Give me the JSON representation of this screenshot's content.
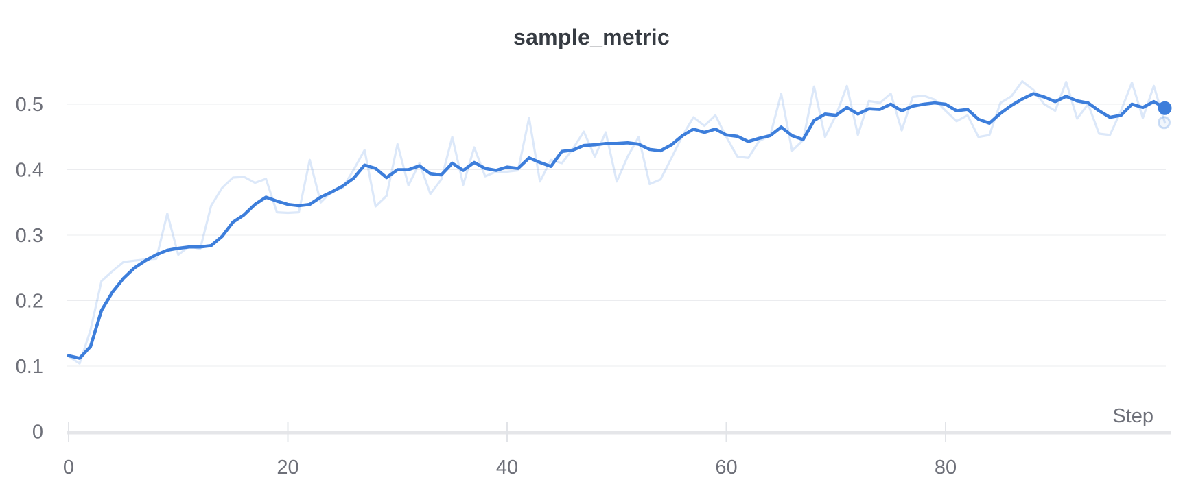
{
  "title": "sample_metric",
  "colors": {
    "accent_blue": "#3d7edb",
    "raw_line_opacity": 0.18,
    "grid_line": "#ebecef",
    "axis_bar": "#e5e6e9",
    "tick_mark": "#e2e4e8",
    "label_gray": "#6e7079",
    "title_dark": "#363b42"
  },
  "x_axis": {
    "label": "Step",
    "tick_labels": [
      "0",
      "20",
      "40",
      "60",
      "80"
    ],
    "tick_values": [
      0,
      20,
      40,
      60,
      80
    ],
    "min": 0,
    "max": 100
  },
  "y_axis": {
    "tick_labels": [
      "0",
      "0.1",
      "0.2",
      "0.3",
      "0.4",
      "0.5"
    ],
    "tick_values": [
      0,
      0.1,
      0.2,
      0.3,
      0.4,
      0.5
    ],
    "min": 0,
    "max": 0.55
  },
  "chart_data": {
    "type": "line",
    "title": "sample_metric",
    "xlabel": "Step",
    "ylabel": "",
    "x_start": 0,
    "x_step": 1,
    "x_range": [
      0,
      100
    ],
    "ylim": [
      0,
      0.55
    ],
    "grid": "horizontal-only",
    "legend": "none",
    "series": [
      {
        "name": "sample_metric (raw)",
        "role": "raw",
        "style": "faded",
        "endpoint_marker": "ring",
        "values": [
          0.115,
          0.104,
          0.155,
          0.23,
          0.245,
          0.259,
          0.261,
          0.263,
          0.264,
          0.333,
          0.27,
          0.283,
          0.279,
          0.345,
          0.372,
          0.388,
          0.389,
          0.38,
          0.386,
          0.335,
          0.334,
          0.335,
          0.415,
          0.35,
          0.367,
          0.372,
          0.4,
          0.43,
          0.344,
          0.36,
          0.439,
          0.376,
          0.41,
          0.363,
          0.385,
          0.45,
          0.377,
          0.434,
          0.39,
          0.397,
          0.397,
          0.399,
          0.479,
          0.382,
          0.415,
          0.41,
          0.432,
          0.458,
          0.42,
          0.457,
          0.382,
          0.42,
          0.45,
          0.378,
          0.385,
          0.418,
          0.452,
          0.48,
          0.467,
          0.483,
          0.45,
          0.42,
          0.418,
          0.444,
          0.452,
          0.516,
          0.429,
          0.445,
          0.527,
          0.45,
          0.483,
          0.528,
          0.453,
          0.505,
          0.502,
          0.516,
          0.46,
          0.511,
          0.513,
          0.507,
          0.49,
          0.474,
          0.483,
          0.45,
          0.453,
          0.502,
          0.512,
          0.535,
          0.522,
          0.5,
          0.49,
          0.534,
          0.478,
          0.5,
          0.455,
          0.453,
          0.49,
          0.533,
          0.479,
          0.528,
          0.472
        ]
      },
      {
        "name": "sample_metric (smoothed)",
        "role": "smoothed",
        "style": "solid",
        "endpoint_marker": "dot",
        "values": [
          0.116,
          0.112,
          0.13,
          0.185,
          0.213,
          0.234,
          0.25,
          0.261,
          0.27,
          0.277,
          0.28,
          0.282,
          0.282,
          0.284,
          0.298,
          0.32,
          0.331,
          0.347,
          0.358,
          0.352,
          0.347,
          0.345,
          0.347,
          0.358,
          0.366,
          0.375,
          0.387,
          0.407,
          0.402,
          0.388,
          0.4,
          0.4,
          0.406,
          0.394,
          0.392,
          0.41,
          0.399,
          0.411,
          0.402,
          0.399,
          0.404,
          0.402,
          0.418,
          0.411,
          0.405,
          0.428,
          0.43,
          0.437,
          0.438,
          0.44,
          0.44,
          0.441,
          0.439,
          0.431,
          0.429,
          0.438,
          0.452,
          0.462,
          0.457,
          0.462,
          0.453,
          0.451,
          0.443,
          0.448,
          0.452,
          0.465,
          0.452,
          0.446,
          0.475,
          0.485,
          0.483,
          0.495,
          0.485,
          0.493,
          0.492,
          0.5,
          0.49,
          0.497,
          0.5,
          0.502,
          0.5,
          0.49,
          0.492,
          0.477,
          0.471,
          0.486,
          0.498,
          0.508,
          0.516,
          0.511,
          0.504,
          0.512,
          0.505,
          0.502,
          0.49,
          0.48,
          0.483,
          0.5,
          0.495,
          0.504,
          0.494
        ]
      }
    ]
  }
}
